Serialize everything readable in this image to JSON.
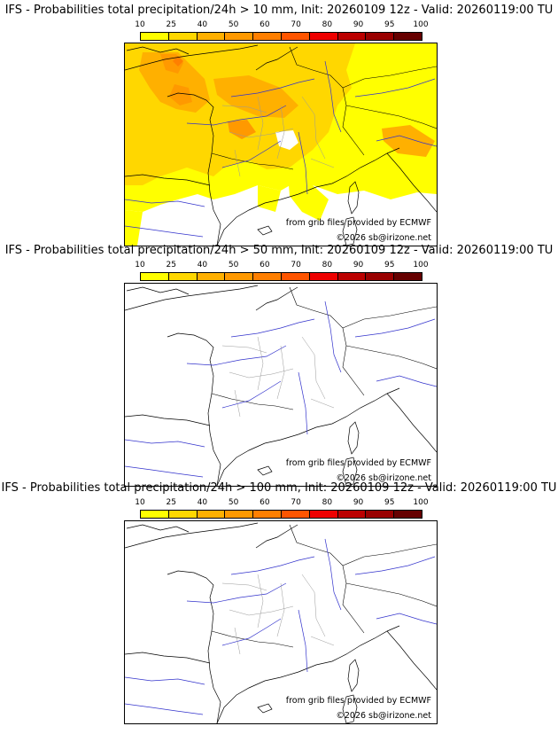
{
  "colorbar": {
    "ticks": [
      "10",
      "25",
      "40",
      "50",
      "60",
      "70",
      "80",
      "90",
      "95",
      "100"
    ],
    "colors": [
      "#ffff00",
      "#ffd700",
      "#ffb000",
      "#ff9900",
      "#ff7f00",
      "#ff5500",
      "#ee0000",
      "#bb0000",
      "#990000",
      "#660000"
    ]
  },
  "panels": [
    {
      "title": "IFS - Probabilities total precipitation/24h > 10 mm, Init: 20260109 12z - Valid: 20260119:00 TU"
    },
    {
      "title": "IFS - Probabilities total precipitation/24h > 50 mm, Init: 20260109 12z - Valid: 20260119:00 TU"
    },
    {
      "title": "IFS - Probabilities total precipitation/24h > 100 mm, Init: 20260109 12z - Valid: 20260119:00 TU"
    }
  ],
  "credits": {
    "source": "from grib files provided by ECMWF",
    "copyright": "©2026 sb@irizone.net"
  },
  "map_colors": {
    "coast": "#000000",
    "rivers": "#3333cc",
    "borders": "#999999"
  }
}
